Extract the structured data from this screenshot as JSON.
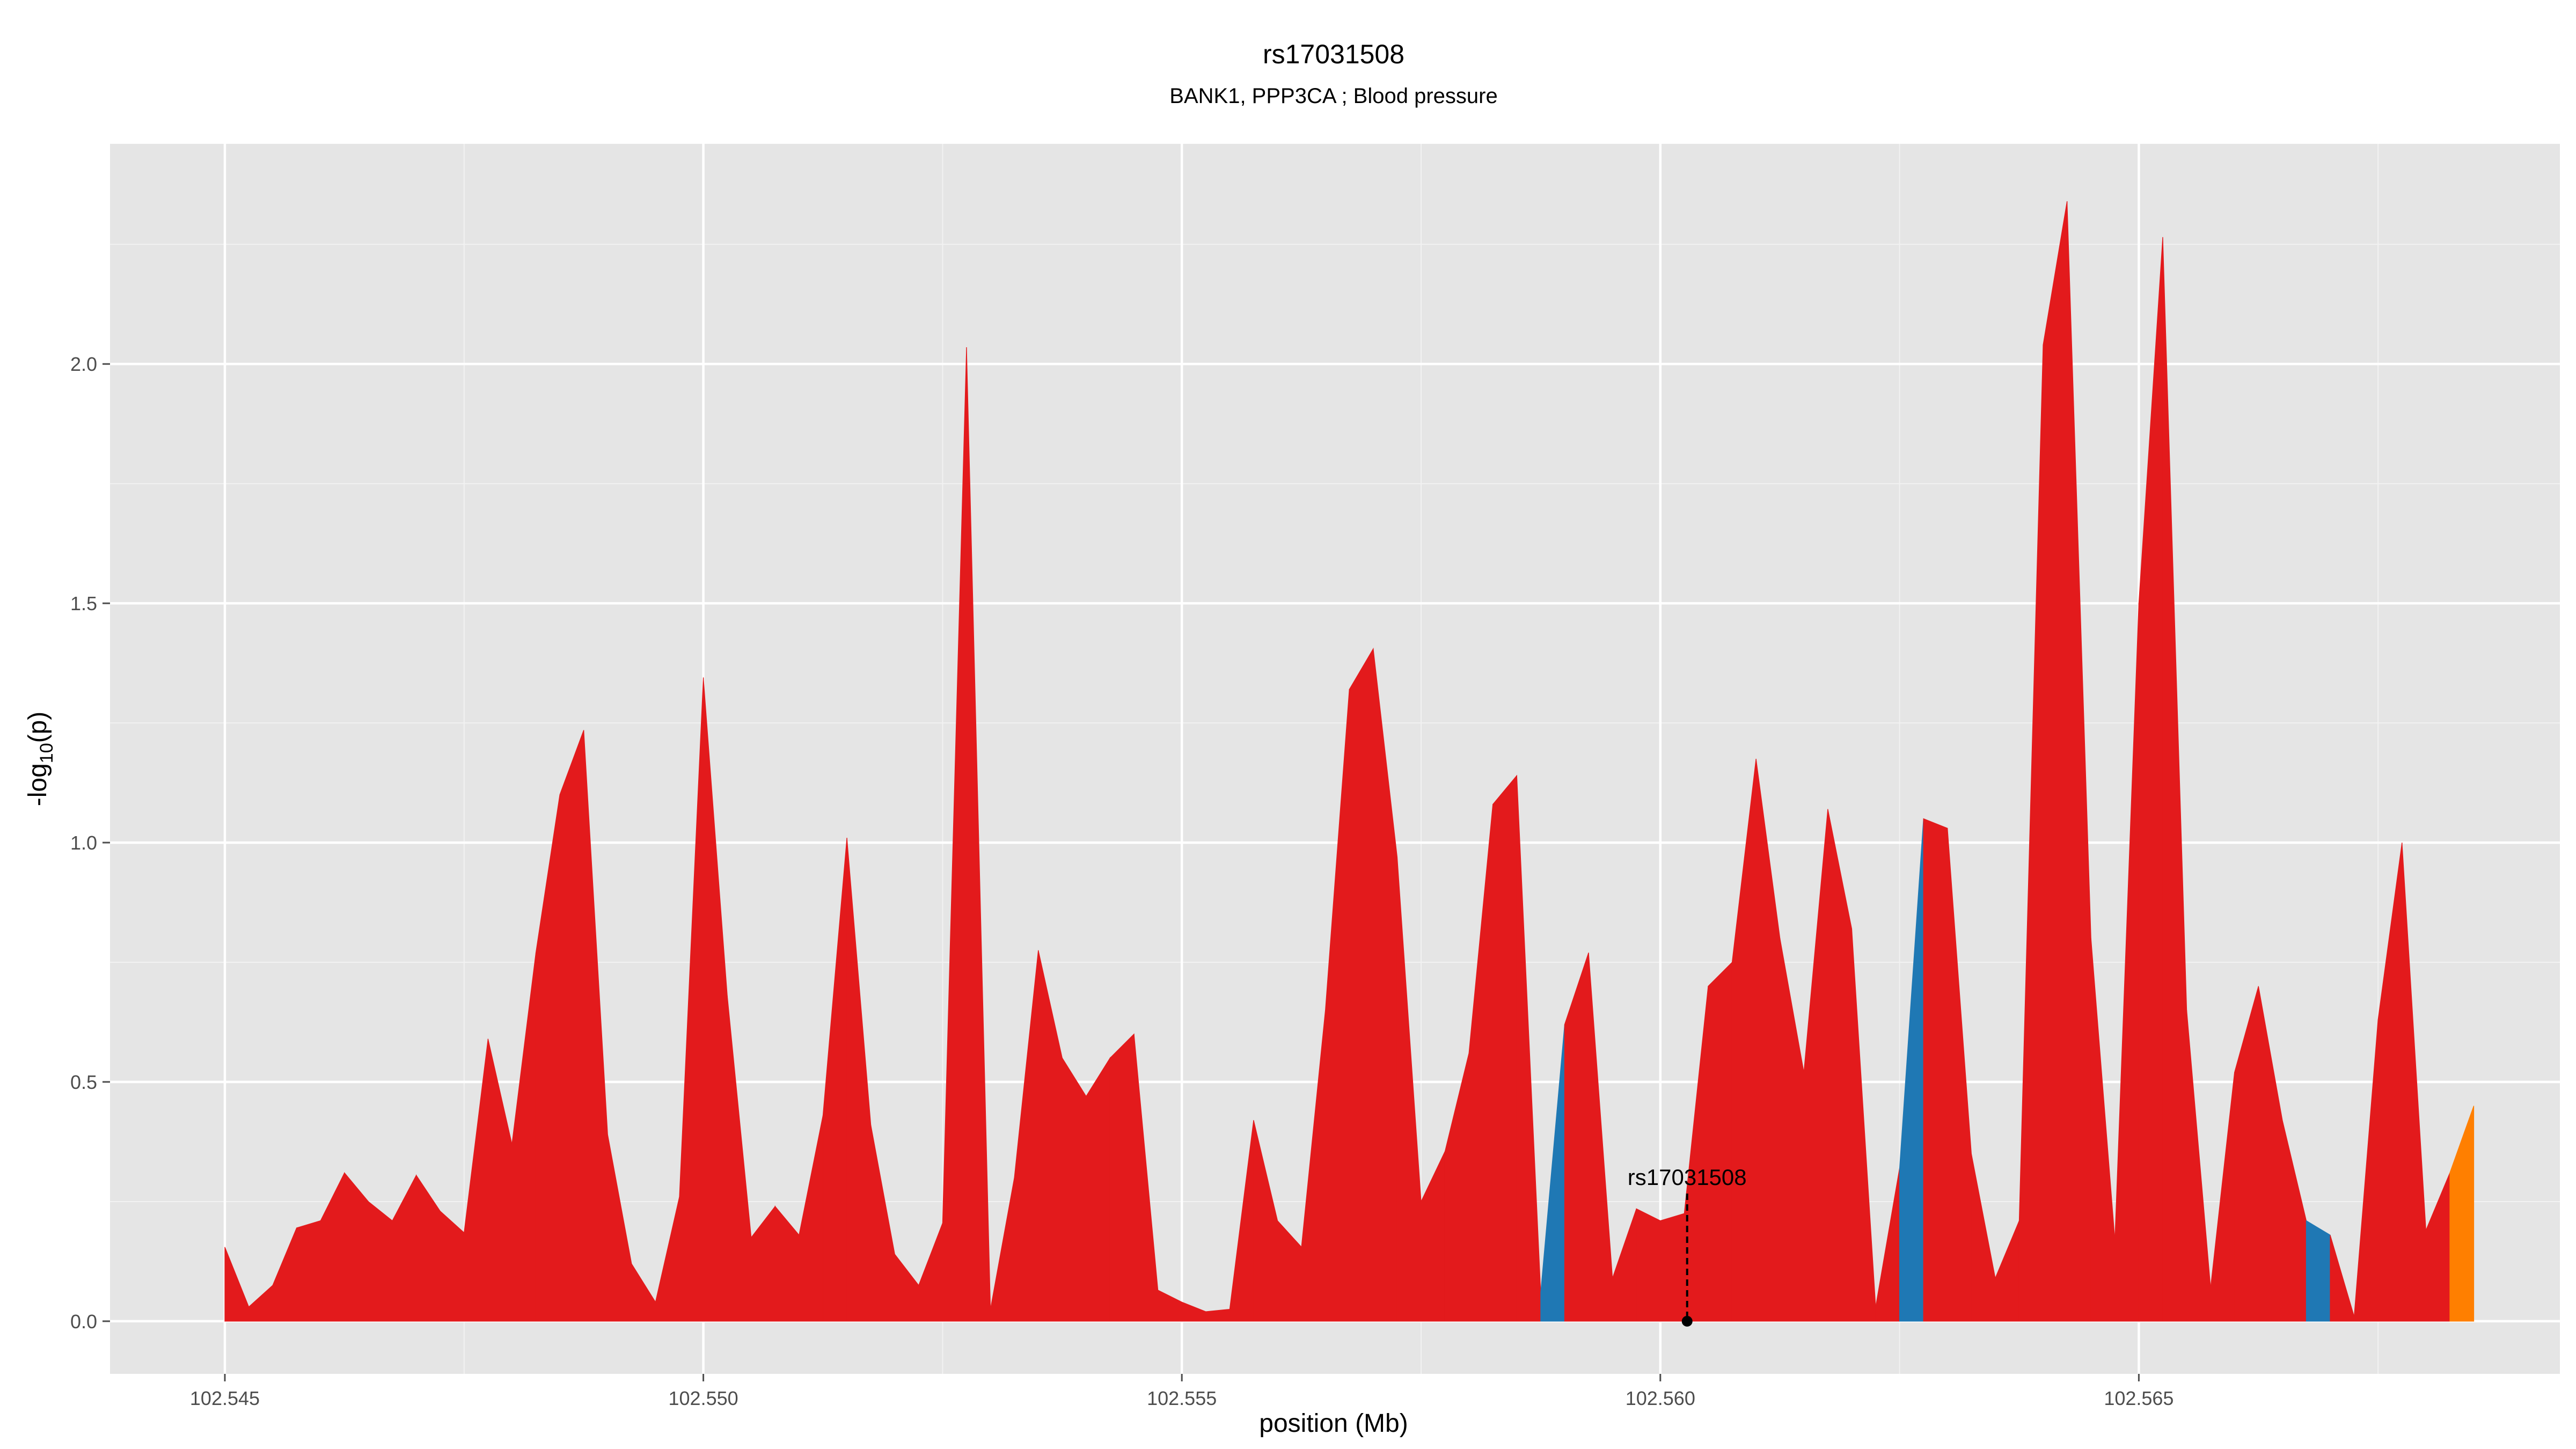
{
  "chart_data": {
    "type": "area",
    "title": "rs17031508",
    "subtitle": "BANK1, PPP3CA ; Blood pressure",
    "xlabel": "position (Mb)",
    "ylabel_main": "-log",
    "ylabel_sub": "10",
    "ylabel_rest": "(p)",
    "xlim": [
      102.5438,
      102.5694
    ],
    "ylim": [
      -0.11,
      2.46
    ],
    "x_ticks": [
      102.545,
      102.55,
      102.555,
      102.56,
      102.565
    ],
    "x_tick_labels": [
      "102.545",
      "102.550",
      "102.555",
      "102.560",
      "102.565"
    ],
    "x_minor": [
      102.5475,
      102.5525,
      102.5575,
      102.5625,
      102.5675
    ],
    "y_ticks": [
      0.0,
      0.5,
      1.0,
      1.5,
      2.0
    ],
    "y_tick_labels": [
      "0.0",
      "0.5",
      "1.0",
      "1.5",
      "2.0"
    ],
    "y_minor": [
      0.25,
      0.75,
      1.25,
      1.75,
      2.25
    ],
    "grid": true,
    "background_color": "#e5e5e5",
    "colors": {
      "red": "#e31a1c",
      "blue": "#1f78b4",
      "orange": "#ff7f00"
    },
    "points": [
      [
        102.545,
        0.155,
        "red"
      ],
      [
        102.54525,
        0.03,
        "red"
      ],
      [
        102.5455,
        0.075,
        "red"
      ],
      [
        102.54575,
        0.195,
        "red"
      ],
      [
        102.546,
        0.21,
        "red"
      ],
      [
        102.54625,
        0.31,
        "red"
      ],
      [
        102.5465,
        0.25,
        "red"
      ],
      [
        102.54675,
        0.21,
        "red"
      ],
      [
        102.547,
        0.305,
        "red"
      ],
      [
        102.54725,
        0.23,
        "red"
      ],
      [
        102.5475,
        0.185,
        "red"
      ],
      [
        102.54775,
        0.59,
        "red"
      ],
      [
        102.548,
        0.37,
        "red"
      ],
      [
        102.54825,
        0.77,
        "red"
      ],
      [
        102.5485,
        1.1,
        "red"
      ],
      [
        102.54875,
        1.235,
        "red"
      ],
      [
        102.549,
        0.39,
        "red"
      ],
      [
        102.54925,
        0.12,
        "red"
      ],
      [
        102.5495,
        0.04,
        "red"
      ],
      [
        102.54975,
        0.26,
        "red"
      ],
      [
        102.55,
        1.345,
        "red"
      ],
      [
        102.55025,
        0.68,
        "red"
      ],
      [
        102.5505,
        0.175,
        "red"
      ],
      [
        102.55075,
        0.24,
        "red"
      ],
      [
        102.551,
        0.18,
        "red"
      ],
      [
        102.55125,
        0.43,
        "red"
      ],
      [
        102.5515,
        1.01,
        "red"
      ],
      [
        102.55175,
        0.41,
        "red"
      ],
      [
        102.552,
        0.14,
        "red"
      ],
      [
        102.55225,
        0.075,
        "red"
      ],
      [
        102.5525,
        0.205,
        "red"
      ],
      [
        102.55275,
        2.035,
        "red"
      ],
      [
        102.553,
        0.025,
        "red"
      ],
      [
        102.55325,
        0.3,
        "red"
      ],
      [
        102.5535,
        0.775,
        "red"
      ],
      [
        102.55375,
        0.55,
        "red"
      ],
      [
        102.554,
        0.47,
        "red"
      ],
      [
        102.55425,
        0.55,
        "red"
      ],
      [
        102.5545,
        0.6,
        "red"
      ],
      [
        102.55475,
        0.065,
        "red"
      ],
      [
        102.555,
        0.04,
        "red"
      ],
      [
        102.55525,
        0.02,
        "red"
      ],
      [
        102.5555,
        0.025,
        "red"
      ],
      [
        102.55575,
        0.42,
        "red"
      ],
      [
        102.556,
        0.21,
        "red"
      ],
      [
        102.55625,
        0.155,
        "red"
      ],
      [
        102.5565,
        0.65,
        "red"
      ],
      [
        102.55675,
        1.32,
        "red"
      ],
      [
        102.557,
        1.405,
        "red"
      ],
      [
        102.55725,
        0.97,
        "red"
      ],
      [
        102.5575,
        0.25,
        "red"
      ],
      [
        102.55775,
        0.355,
        "red"
      ],
      [
        102.558,
        0.56,
        "red"
      ],
      [
        102.55825,
        1.08,
        "red"
      ],
      [
        102.5585,
        1.14,
        "red"
      ],
      [
        102.55875,
        0.06,
        "blue"
      ],
      [
        102.559,
        0.62,
        "red"
      ],
      [
        102.55925,
        0.77,
        "red"
      ],
      [
        102.5595,
        0.09,
        "red"
      ],
      [
        102.55975,
        0.235,
        "red"
      ],
      [
        102.56,
        0.21,
        "red"
      ],
      [
        102.56025,
        0.225,
        "red"
      ],
      [
        102.5605,
        0.7,
        "red"
      ],
      [
        102.56075,
        0.75,
        "red"
      ],
      [
        102.561,
        1.175,
        "red"
      ],
      [
        102.56125,
        0.8,
        "red"
      ],
      [
        102.5615,
        0.52,
        "red"
      ],
      [
        102.56175,
        1.07,
        "red"
      ],
      [
        102.562,
        0.82,
        "red"
      ],
      [
        102.56225,
        0.03,
        "red"
      ],
      [
        102.5625,
        0.32,
        "blue"
      ],
      [
        102.56275,
        1.05,
        "red"
      ],
      [
        102.563,
        1.03,
        "red"
      ],
      [
        102.56325,
        0.35,
        "red"
      ],
      [
        102.5635,
        0.09,
        "red"
      ],
      [
        102.56375,
        0.21,
        "red"
      ],
      [
        102.564,
        2.04,
        "red"
      ],
      [
        102.56425,
        2.34,
        "red"
      ],
      [
        102.5645,
        0.8,
        "red"
      ],
      [
        102.56475,
        0.17,
        "red"
      ],
      [
        102.565,
        1.5,
        "red"
      ],
      [
        102.56525,
        2.265,
        "red"
      ],
      [
        102.5655,
        0.65,
        "red"
      ],
      [
        102.56575,
        0.07,
        "red"
      ],
      [
        102.566,
        0.52,
        "red"
      ],
      [
        102.56625,
        0.7,
        "red"
      ],
      [
        102.5665,
        0.42,
        "red"
      ],
      [
        102.56675,
        0.21,
        "blue"
      ],
      [
        102.567,
        0.18,
        "red"
      ],
      [
        102.56725,
        0.01,
        "red"
      ],
      [
        102.5675,
        0.63,
        "red"
      ],
      [
        102.56775,
        1.0,
        "red"
      ],
      [
        102.568,
        0.19,
        "red"
      ],
      [
        102.56825,
        0.31,
        "orange"
      ],
      [
        102.5685,
        0.45,
        "orange"
      ]
    ],
    "annotation": {
      "label": "rs17031508",
      "x": 102.56028,
      "y": 0.0,
      "label_y": 0.26
    }
  }
}
